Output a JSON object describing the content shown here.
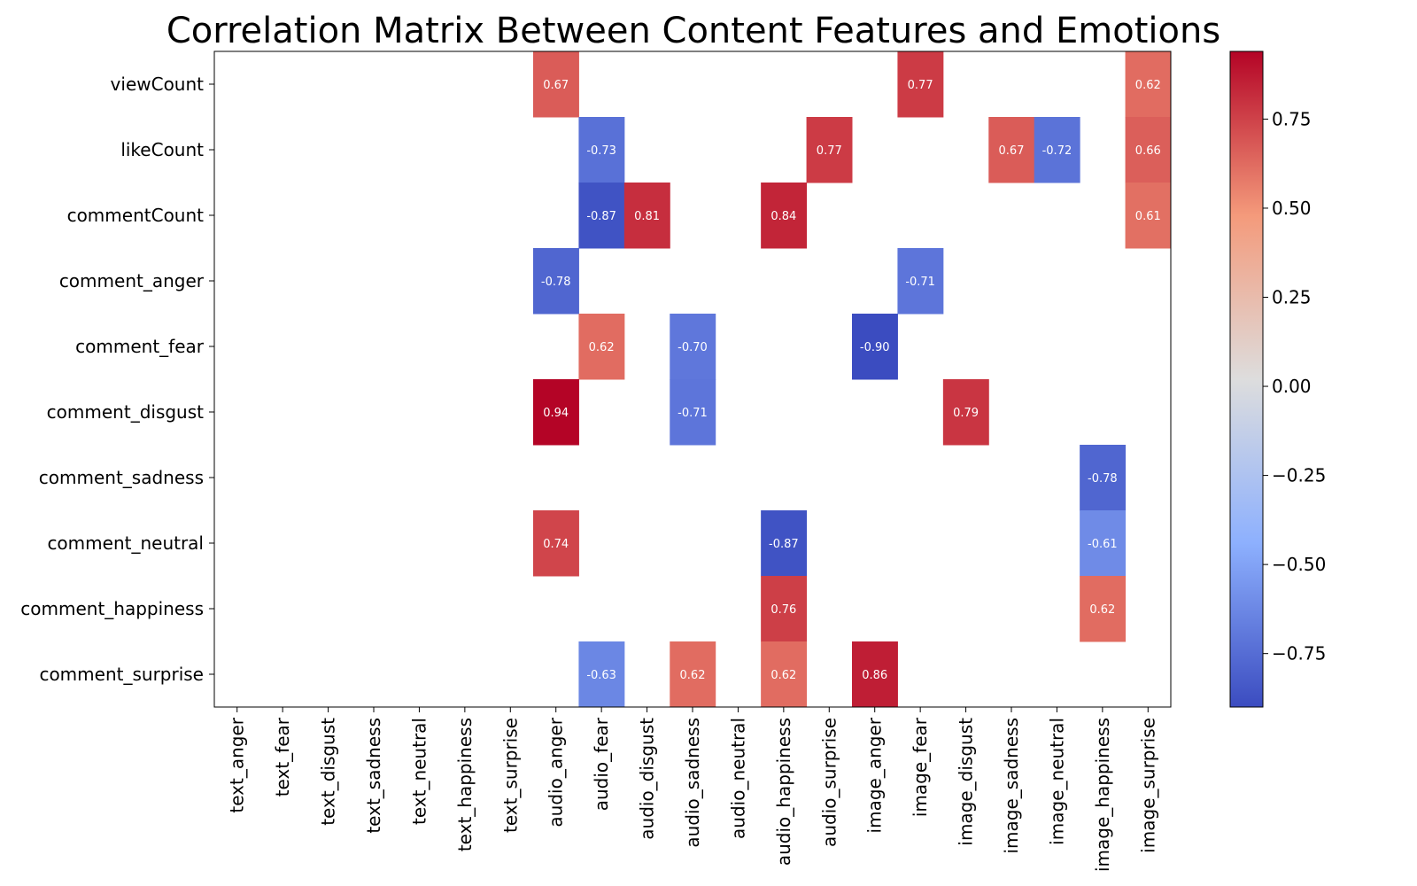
{
  "chart_data": {
    "type": "heatmap",
    "title": "Correlation Matrix Between Content Features and Emotions",
    "rows": [
      "viewCount",
      "likeCount",
      "commentCount",
      "comment_anger",
      "comment_fear",
      "comment_disgust",
      "comment_sadness",
      "comment_neutral",
      "comment_happiness",
      "comment_surprise"
    ],
    "columns": [
      "text_anger",
      "text_fear",
      "text_disgust",
      "text_sadness",
      "text_neutral",
      "text_happiness",
      "text_surprise",
      "audio_anger",
      "audio_fear",
      "audio_disgust",
      "audio_sadness",
      "audio_neutral",
      "audio_happiness",
      "audio_surprise",
      "image_anger",
      "image_fear",
      "image_disgust",
      "image_sadness",
      "image_neutral",
      "image_happiness",
      "image_surprise"
    ],
    "cells": [
      {
        "row": "viewCount",
        "col": "audio_anger",
        "value": 0.67,
        "label": "0.67"
      },
      {
        "row": "viewCount",
        "col": "image_fear",
        "value": 0.77,
        "label": "0.77"
      },
      {
        "row": "viewCount",
        "col": "image_surprise",
        "value": 0.62,
        "label": "0.62"
      },
      {
        "row": "likeCount",
        "col": "audio_fear",
        "value": -0.73,
        "label": "-0.73"
      },
      {
        "row": "likeCount",
        "col": "audio_surprise",
        "value": 0.77,
        "label": "0.77"
      },
      {
        "row": "likeCount",
        "col": "image_sadness",
        "value": 0.67,
        "label": "0.67"
      },
      {
        "row": "likeCount",
        "col": "image_neutral",
        "value": -0.72,
        "label": "-0.72"
      },
      {
        "row": "likeCount",
        "col": "image_surprise",
        "value": 0.66,
        "label": "0.66"
      },
      {
        "row": "commentCount",
        "col": "audio_fear",
        "value": -0.87,
        "label": "-0.87"
      },
      {
        "row": "commentCount",
        "col": "audio_disgust",
        "value": 0.81,
        "label": "0.81"
      },
      {
        "row": "commentCount",
        "col": "audio_happiness",
        "value": 0.84,
        "label": "0.84"
      },
      {
        "row": "commentCount",
        "col": "image_surprise",
        "value": 0.61,
        "label": "0.61"
      },
      {
        "row": "comment_anger",
        "col": "audio_anger",
        "value": -0.78,
        "label": "-0.78"
      },
      {
        "row": "comment_anger",
        "col": "image_fear",
        "value": -0.71,
        "label": "-0.71"
      },
      {
        "row": "comment_fear",
        "col": "audio_fear",
        "value": 0.62,
        "label": "0.62"
      },
      {
        "row": "comment_fear",
        "col": "audio_sadness",
        "value": -0.7,
        "label": "-0.70"
      },
      {
        "row": "comment_fear",
        "col": "image_anger",
        "value": -0.9,
        "label": "-0.90"
      },
      {
        "row": "comment_disgust",
        "col": "audio_anger",
        "value": 0.94,
        "label": "0.94"
      },
      {
        "row": "comment_disgust",
        "col": "audio_sadness",
        "value": -0.71,
        "label": "-0.71"
      },
      {
        "row": "comment_disgust",
        "col": "image_disgust",
        "value": 0.79,
        "label": "0.79"
      },
      {
        "row": "comment_sadness",
        "col": "image_happiness",
        "value": -0.78,
        "label": "-0.78"
      },
      {
        "row": "comment_neutral",
        "col": "audio_anger",
        "value": 0.74,
        "label": "0.74"
      },
      {
        "row": "comment_neutral",
        "col": "audio_happiness",
        "value": -0.87,
        "label": "-0.87"
      },
      {
        "row": "comment_neutral",
        "col": "image_happiness",
        "value": -0.61,
        "label": "-0.61"
      },
      {
        "row": "comment_happiness",
        "col": "audio_happiness",
        "value": 0.76,
        "label": "0.76"
      },
      {
        "row": "comment_happiness",
        "col": "image_happiness",
        "value": 0.62,
        "label": "0.62"
      },
      {
        "row": "comment_surprise",
        "col": "audio_fear",
        "value": -0.63,
        "label": "-0.63"
      },
      {
        "row": "comment_surprise",
        "col": "audio_sadness",
        "value": 0.62,
        "label": "0.62"
      },
      {
        "row": "comment_surprise",
        "col": "audio_happiness",
        "value": 0.62,
        "label": "0.62"
      },
      {
        "row": "comment_surprise",
        "col": "image_anger",
        "value": 0.86,
        "label": "0.86"
      }
    ],
    "colorbar": {
      "colormap": "coolwarm",
      "vmin": -0.9,
      "vmax": 0.94,
      "ticks": [
        0.75,
        0.5,
        0.25,
        0.0,
        -0.25,
        -0.5,
        -0.75
      ],
      "tick_labels": [
        "0.75",
        "0.50",
        "0.25",
        "0.00",
        "−0.25",
        "−0.50",
        "−0.75"
      ]
    },
    "blank_color": "#ffffff",
    "grid": false
  }
}
